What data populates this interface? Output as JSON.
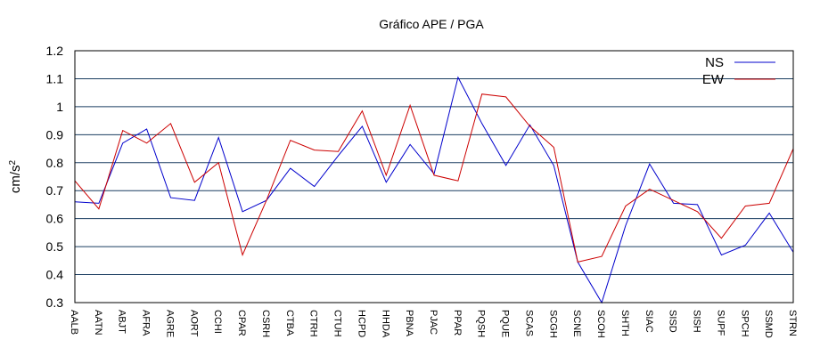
{
  "chart_data": {
    "type": "line",
    "title": "Gráfico  APE / PGA",
    "xlabel": "",
    "ylabel": "cm/s",
    "ylabel_sup": "2",
    "ylim": [
      0.3,
      1.2
    ],
    "yticks": [
      "0.3",
      "0.4",
      "0.5",
      "0.6",
      "0.7",
      "0.8",
      "0.9",
      "1",
      "1.1",
      "1.2"
    ],
    "grid": true,
    "legend_position": "top-right",
    "categories": [
      "AALB",
      "AATN",
      "ABJT",
      "AFRA",
      "AGRE",
      "AORT",
      "CCHI",
      "CPAR",
      "CSRH",
      "CTBA",
      "CTRH",
      "CTUH",
      "HCPD",
      "HHDA",
      "PBNA",
      "PJAC",
      "PPAR",
      "PQSH",
      "PQUE",
      "SCAS",
      "SCGH",
      "SCNE",
      "SCOH",
      "SHTH",
      "SIAC",
      "SISD",
      "SISH",
      "SUPF",
      "SPCH",
      "SSMD",
      "STRN"
    ],
    "series": [
      {
        "name": "NS",
        "color": "#0000cc",
        "values": [
          0.66,
          0.655,
          0.87,
          0.92,
          0.675,
          0.665,
          0.89,
          0.625,
          0.665,
          0.78,
          0.715,
          0.825,
          0.93,
          0.73,
          0.865,
          0.76,
          1.105,
          0.94,
          0.79,
          0.935,
          0.79,
          0.445,
          0.3,
          0.575,
          0.795,
          0.655,
          0.65,
          0.47,
          0.505,
          0.62,
          0.48
        ]
      },
      {
        "name": "EW",
        "color": "#cc0000",
        "values": [
          0.735,
          0.635,
          0.915,
          0.87,
          0.94,
          0.73,
          0.8,
          0.47,
          0.665,
          0.88,
          0.845,
          0.84,
          0.985,
          0.755,
          1.005,
          0.755,
          0.735,
          1.045,
          1.035,
          0.93,
          0.855,
          0.445,
          0.465,
          0.645,
          0.705,
          0.665,
          0.625,
          0.53,
          0.645,
          0.655,
          0.85
        ]
      }
    ]
  }
}
